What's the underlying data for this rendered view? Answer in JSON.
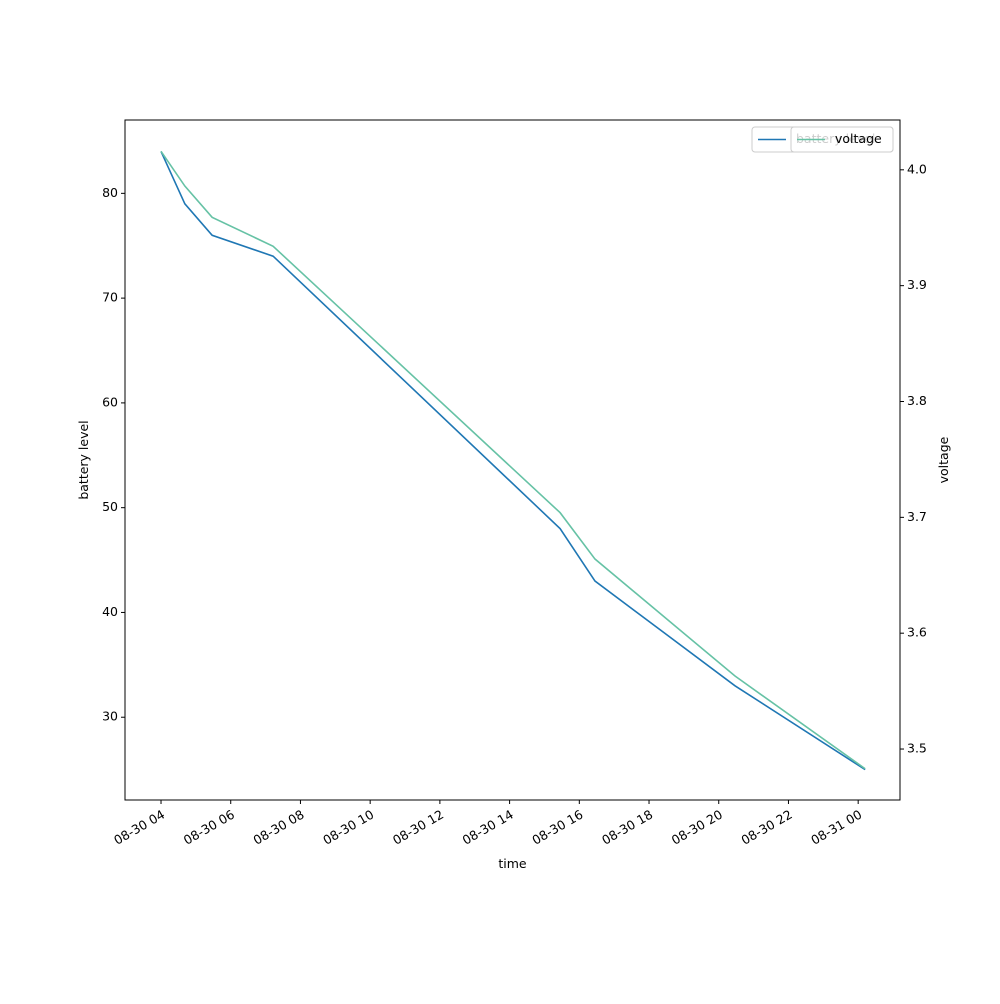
{
  "chart_data": {
    "type": "line",
    "xlabel": "time",
    "ylabel": "battery level",
    "y2label": "voltage",
    "x": [
      "08-30 04:00",
      "08-30 04:41",
      "08-30 05:28",
      "08-30 07:13",
      "08-30 15:27",
      "08-30 16:27",
      "08-30 20:28",
      "08-31 00:12"
    ],
    "series": [
      {
        "name": "battery level",
        "color": "#1f77b4",
        "values": [
          84,
          79,
          76,
          74,
          48,
          43,
          33,
          25
        ]
      },
      {
        "name": "voltage",
        "color": "#66c2a5",
        "axis": "y2",
        "values": [
          4.016,
          3.986,
          3.959,
          3.934,
          3.704,
          3.664,
          3.563,
          3.483
        ]
      }
    ],
    "xlim": [
      "08-30 02:58",
      "08-31 01:12"
    ],
    "xticks": [
      "08-30 04",
      "08-30 06",
      "08-30 08",
      "08-30 10",
      "08-30 12",
      "08-30 14",
      "08-30 16",
      "08-30 18",
      "08-30 20",
      "08-30 22",
      "08-31 00"
    ],
    "ylim": [
      22.1,
      87.0
    ],
    "yticks": [
      30,
      40,
      50,
      60,
      70,
      80
    ],
    "y2lim": [
      3.456,
      4.043
    ],
    "y2ticks": [
      3.5,
      3.6,
      3.7,
      3.8,
      3.9,
      {
        "value": 4.0,
        "label": "4.0"
      }
    ],
    "legend": "upper right"
  }
}
